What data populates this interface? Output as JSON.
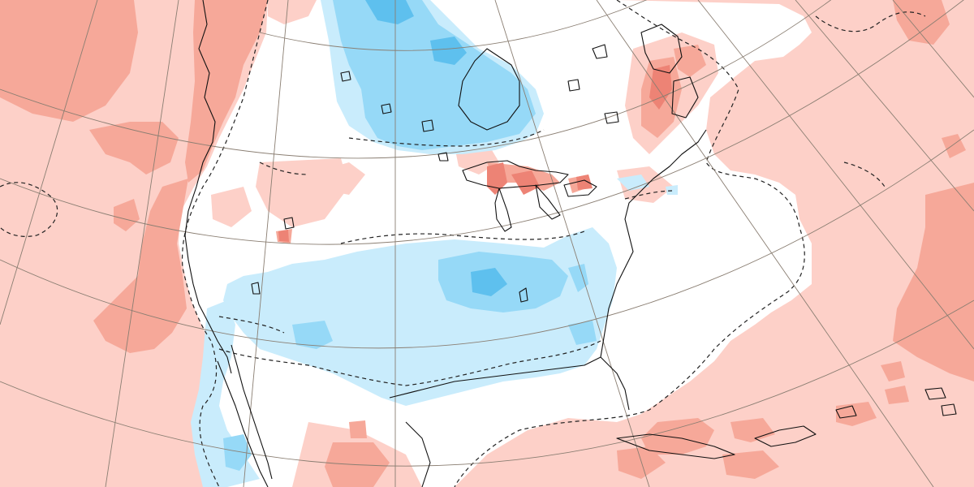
{
  "map": {
    "projection": "conic",
    "region": "North America",
    "background_color": "#ffffff",
    "colors": {
      "warm_light": "#fdd0c8",
      "warm_medium": "#f6a899",
      "warm_strong": "#ed8375",
      "cool_light": "#c9ecfc",
      "cool_medium": "#96d9f7",
      "cool_strong": "#5ec0ee",
      "coastline": "#111111",
      "graticule": "#8a7e72",
      "zero_contour": "#222222"
    },
    "legend": "none",
    "labels": []
  }
}
